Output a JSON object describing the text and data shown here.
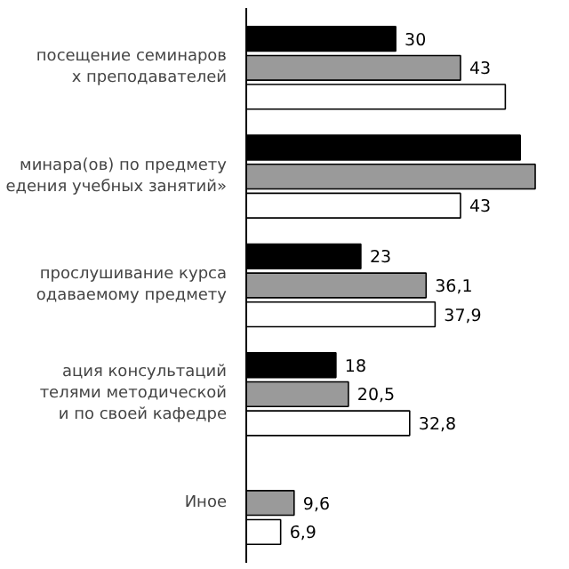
{
  "chart_data": {
    "type": "bar",
    "orientation": "horizontal",
    "categories": [
      "посещение семинаров\nх преподавателей",
      "минара(ов) по предмету\nедения учебных занятий»",
      "прослушивание курса\nодаваемому предмету",
      "ация консультаций\nтелями методической\nи по своей кафедре",
      "Иное"
    ],
    "series": [
      {
        "color": "#000000",
        "values": [
          30,
          55,
          23,
          18,
          null
        ],
        "value_labels": [
          "30",
          null,
          "23",
          "18",
          null
        ]
      },
      {
        "color": "#9a9a9a",
        "values": [
          43,
          58,
          36.1,
          20.5,
          9.6
        ],
        "value_labels": [
          "43",
          null,
          "36,1",
          "20,5",
          "9,6"
        ]
      },
      {
        "color": "#ffffff",
        "values": [
          52,
          43,
          37.9,
          32.8,
          6.9
        ],
        "value_labels": [
          null,
          "43",
          "37,9",
          "32,8",
          "6,9"
        ]
      }
    ],
    "grid": false
  }
}
